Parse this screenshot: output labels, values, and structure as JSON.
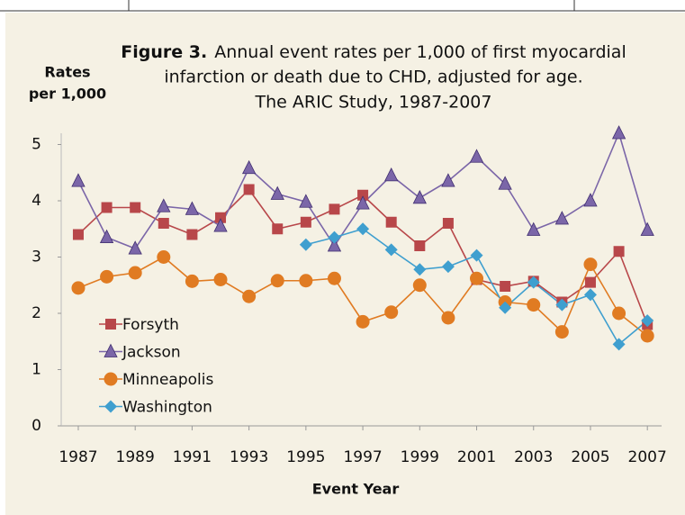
{
  "chart_data": {
    "type": "line",
    "title_prefix": "Figure 3.",
    "title": [
      "Annual event rates per 1,000 of first myocardial",
      "infarction or death due to CHD, adjusted for age.",
      "The ARIC Study, 1987-2007"
    ],
    "y_label": [
      "Rates",
      "per 1,000"
    ],
    "x_label": "Event Year",
    "x": [
      1987,
      1988,
      1989,
      1990,
      1991,
      1992,
      1993,
      1994,
      1995,
      1996,
      1997,
      1998,
      1999,
      2000,
      2001,
      2002,
      2003,
      2004,
      2005,
      2006,
      2007
    ],
    "xlim": [
      1986.4,
      2007.5
    ],
    "xticks": [
      1987,
      1989,
      1991,
      1993,
      1995,
      1997,
      1999,
      2001,
      2003,
      2005,
      2007
    ],
    "ylim": [
      0,
      5.2
    ],
    "yticks": [
      0,
      1,
      2,
      3,
      4,
      5
    ],
    "grid": false,
    "legend": "lower left",
    "series": [
      {
        "name": "Forsyth",
        "color": "#b8474a",
        "marker": "square",
        "values": [
          3.4,
          3.88,
          3.88,
          3.6,
          3.4,
          3.7,
          4.2,
          3.5,
          3.62,
          3.85,
          4.1,
          3.62,
          3.2,
          3.6,
          2.6,
          2.48,
          2.57,
          2.2,
          2.55,
          3.1,
          1.8
        ]
      },
      {
        "name": "Jackson",
        "color": "#7b66a8",
        "marker": "triangle",
        "values": [
          4.35,
          3.35,
          3.15,
          3.9,
          3.85,
          3.55,
          4.58,
          4.12,
          3.98,
          3.2,
          3.95,
          4.45,
          4.05,
          4.35,
          4.78,
          4.3,
          3.48,
          3.68,
          4.0,
          5.2,
          3.48
        ]
      },
      {
        "name": "Minneapolis",
        "color": "#e07b22",
        "marker": "circle",
        "values": [
          2.45,
          2.65,
          2.72,
          3.0,
          2.57,
          2.6,
          2.3,
          2.58,
          2.58,
          2.62,
          1.85,
          2.02,
          2.5,
          1.92,
          2.62,
          2.2,
          2.15,
          1.67,
          2.87,
          2.0,
          1.6
        ]
      },
      {
        "name": "Washington",
        "color": "#3f9fcf",
        "marker": "diamond",
        "values": [
          null,
          null,
          null,
          null,
          null,
          null,
          null,
          null,
          3.22,
          3.35,
          3.5,
          3.13,
          2.78,
          2.83,
          3.03,
          2.1,
          2.55,
          2.15,
          2.33,
          1.45,
          1.87
        ]
      }
    ]
  }
}
